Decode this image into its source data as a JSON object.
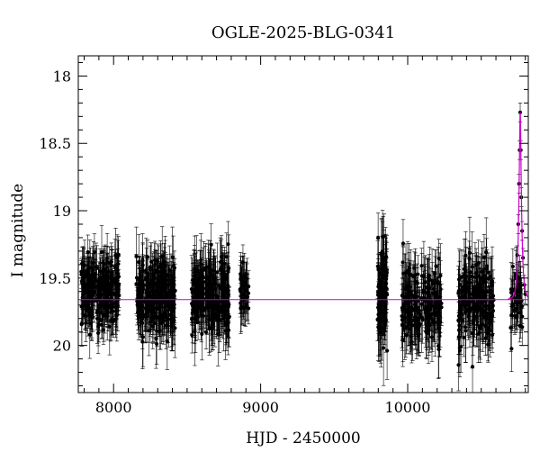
{
  "chart_data": {
    "type": "scatter",
    "title": "OGLE-2025-BLG-0341",
    "xlabel": "HJD - 2450000",
    "ylabel": "I magnitude",
    "xlim": [
      7760,
      10820
    ],
    "ylim": [
      20.35,
      17.85
    ],
    "y_inverted": true,
    "grid": false,
    "x_ticks": [
      8000,
      9000,
      10000
    ],
    "y_ticks": [
      18,
      18.5,
      19,
      19.5,
      20
    ],
    "x_tick_labels": [
      "8000",
      "9000",
      "10000"
    ],
    "y_tick_labels": [
      "18",
      "18.5",
      "19",
      "19.5",
      "20"
    ],
    "colors": {
      "points": "#000000",
      "model": "#cc00cc"
    },
    "baseline_mag": 19.66,
    "seasons": [
      {
        "start": 7780,
        "end": 8040,
        "mean": 19.6,
        "scatter": 0.22,
        "err": 0.15,
        "count": 260
      },
      {
        "start": 8150,
        "end": 8420,
        "mean": 19.62,
        "scatter": 0.24,
        "err": 0.17,
        "count": 270
      },
      {
        "start": 8530,
        "end": 8790,
        "mean": 19.63,
        "scatter": 0.25,
        "err": 0.18,
        "count": 260
      },
      {
        "start": 8860,
        "end": 8920,
        "mean": 19.63,
        "scatter": 0.2,
        "err": 0.14,
        "count": 40
      },
      {
        "start": 9795,
        "end": 9860,
        "mean": 19.62,
        "scatter": 0.32,
        "err": 0.2,
        "count": 90
      },
      {
        "start": 9960,
        "end": 10230,
        "mean": 19.7,
        "scatter": 0.25,
        "err": 0.19,
        "count": 200
      },
      {
        "start": 10340,
        "end": 10590,
        "mean": 19.68,
        "scatter": 0.26,
        "err": 0.19,
        "count": 190
      },
      {
        "start": 10700,
        "end": 10780,
        "mean": 19.65,
        "scatter": 0.2,
        "err": 0.15,
        "count": 50
      }
    ],
    "event": {
      "t0": 10765,
      "tE": 18,
      "peak_mag": 18.27,
      "points": [
        {
          "x": 10745,
          "y": 19.33
        },
        {
          "x": 10752,
          "y": 19.1
        },
        {
          "x": 10757,
          "y": 18.8
        },
        {
          "x": 10761,
          "y": 18.55
        },
        {
          "x": 10765,
          "y": 18.27
        },
        {
          "x": 10769,
          "y": 18.55
        },
        {
          "x": 10773,
          "y": 18.9
        },
        {
          "x": 10778,
          "y": 19.15
        },
        {
          "x": 10784,
          "y": 19.35
        },
        {
          "x": 10792,
          "y": 19.55
        },
        {
          "x": 10800,
          "y": 19.62
        }
      ]
    }
  }
}
